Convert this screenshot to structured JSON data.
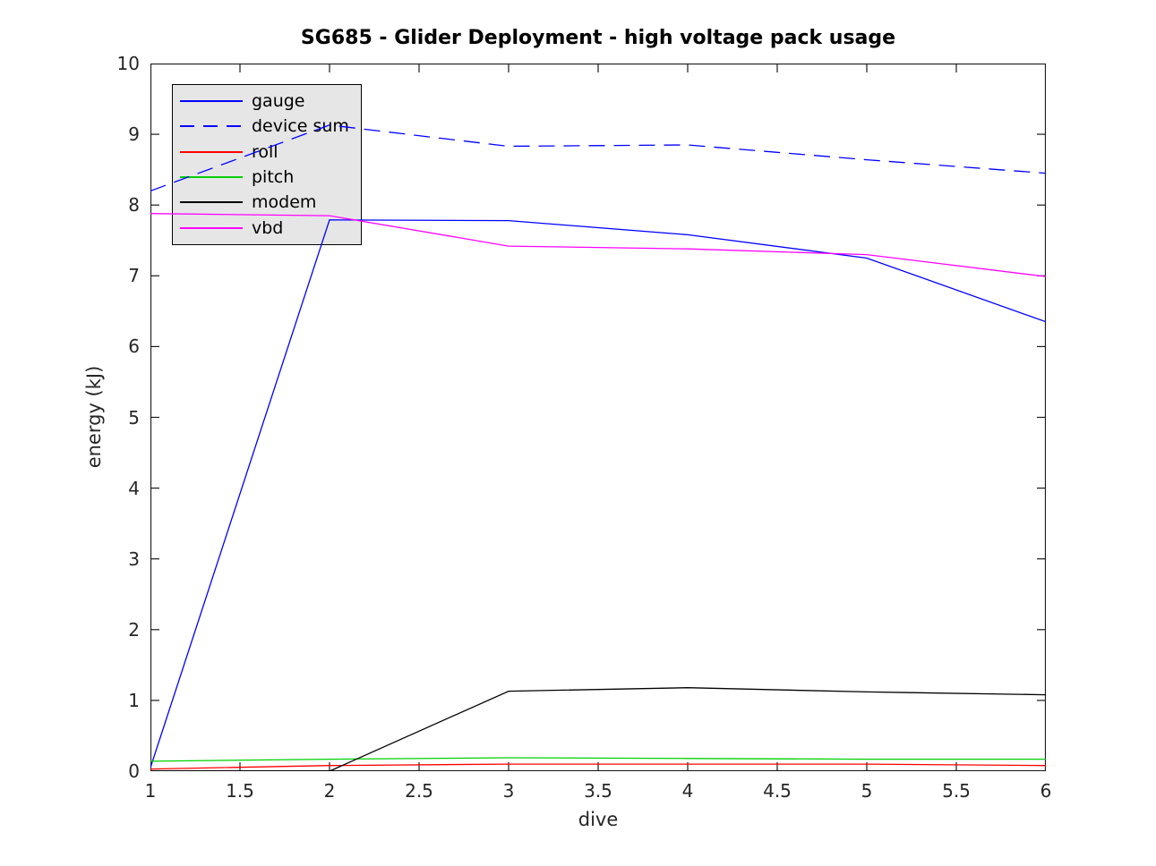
{
  "chart_data": {
    "type": "line",
    "title": "SG685 - Glider Deployment - high voltage pack usage",
    "xlabel": "dive",
    "ylabel": "energy (kJ)",
    "xlim": [
      1,
      6
    ],
    "ylim": [
      0,
      10
    ],
    "xticks": [
      1,
      1.5,
      2,
      2.5,
      3,
      3.5,
      4,
      4.5,
      5,
      5.5,
      6
    ],
    "yticks": [
      0,
      1,
      2,
      3,
      4,
      5,
      6,
      7,
      8,
      9,
      10
    ],
    "x": [
      1,
      2,
      3,
      4,
      5,
      6
    ],
    "grid": false,
    "legend_position": "upper-left",
    "legend_bg": "#e6e6e6",
    "axis_color": "#1a1a1a",
    "tick_label_color": "#262626",
    "series": [
      {
        "name": "gauge",
        "color": "#0000ff",
        "style": "solid",
        "values": [
          0.05,
          7.79,
          7.78,
          7.58,
          7.25,
          6.35
        ]
      },
      {
        "name": "device sum",
        "color": "#0000ff",
        "style": "dashed",
        "values": [
          8.2,
          9.13,
          8.83,
          8.85,
          8.64,
          8.45
        ]
      },
      {
        "name": "roll",
        "color": "#ff0000",
        "style": "solid",
        "values": [
          0.03,
          0.08,
          0.1,
          0.1,
          0.1,
          0.08
        ]
      },
      {
        "name": "pitch",
        "color": "#00d000",
        "style": "solid",
        "values": [
          0.14,
          0.17,
          0.19,
          0.18,
          0.17,
          0.17
        ]
      },
      {
        "name": "modem",
        "color": "#000000",
        "style": "solid",
        "values": [
          0.0,
          0.0,
          1.13,
          1.18,
          1.12,
          1.08
        ]
      },
      {
        "name": "vbd",
        "color": "#ff00ff",
        "style": "solid",
        "values": [
          7.88,
          7.85,
          7.42,
          7.38,
          7.3,
          6.99
        ]
      }
    ]
  }
}
